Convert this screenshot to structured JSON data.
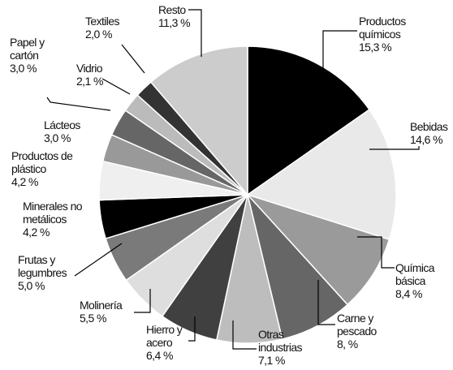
{
  "chart_data": {
    "type": "pie",
    "categories": [
      "Productos químicos",
      "Bebidas",
      "Química básica",
      "Carne y pescado",
      "Otras industrias",
      "Hierro y acero",
      "Molinería",
      "Frutas y legumbres",
      "Minerales no metálicos",
      "Productos de plástico",
      "Lácteos",
      "Papel y cartón",
      "Vidrio",
      "Textiles",
      "Resto"
    ],
    "values": [
      15.3,
      14.6,
      8.4,
      8,
      7.1,
      6.4,
      5.5,
      5.0,
      4.2,
      4.2,
      3.0,
      3.0,
      2.1,
      2.0,
      11.3
    ],
    "value_labels": [
      "15,3 %",
      "14,6 %",
      "8,4 %",
      "8, %",
      "7,1 %",
      "6,4 %",
      "5,5 %",
      "5,0 %",
      "4,2 %",
      "4,2 %",
      "3,0 %",
      "3,0 %",
      "2,1 %",
      "2,0 %",
      "11,3 %"
    ],
    "colors": [
      "#000000",
      "#e9e9e9",
      "#9a9a9a",
      "#666666",
      "#bdbdbd",
      "#404040",
      "#dedede",
      "#7a7a7a",
      "#000000",
      "#efefef",
      "#999999",
      "#666666",
      "#bbbbbb",
      "#333333",
      "#cccccc"
    ]
  }
}
